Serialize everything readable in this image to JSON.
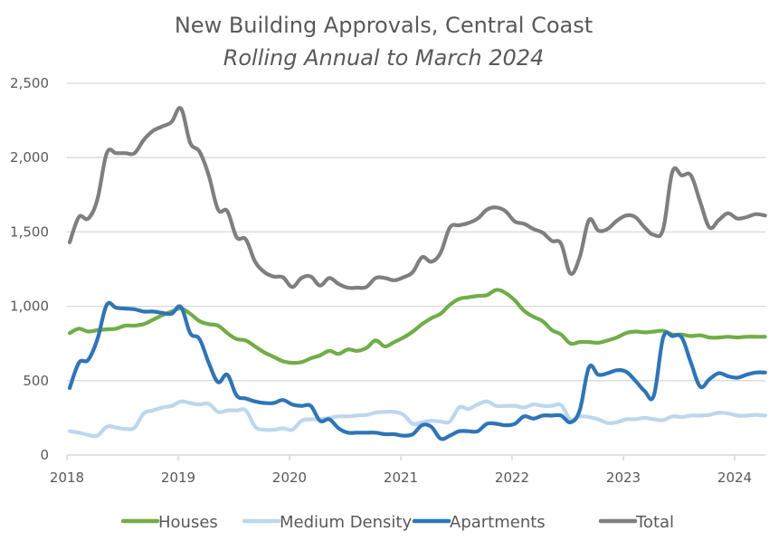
{
  "chart_data": {
    "type": "line",
    "title": "New Building Approvals, Central Coast",
    "subtitle": "Rolling Annual to March 2024",
    "xlabel": "",
    "ylabel": "",
    "ylim": [
      0,
      2500
    ],
    "yticks": [
      0,
      500,
      1000,
      1500,
      2000,
      2500
    ],
    "ytick_labels": [
      "0",
      "500",
      "1,000",
      "1,500",
      "2,000",
      "2,500"
    ],
    "xlim": [
      2018.0,
      2024.25
    ],
    "xticks": [
      2018,
      2019,
      2020,
      2021,
      2022,
      2023,
      2024
    ],
    "xtick_labels": [
      "2018",
      "2019",
      "2020",
      "2021",
      "2022",
      "2023",
      "2024"
    ],
    "grid": true,
    "legend_position": "bottom",
    "x_start": 2018.0,
    "x_step_years": 0.08333,
    "series": [
      {
        "name": "Houses",
        "color": "#70ad47",
        "values": [
          820,
          850,
          830,
          840,
          845,
          850,
          870,
          870,
          880,
          910,
          940,
          965,
          985,
          950,
          900,
          880,
          870,
          820,
          780,
          770,
          730,
          690,
          660,
          630,
          620,
          625,
          650,
          670,
          700,
          680,
          710,
          700,
          720,
          770,
          730,
          760,
          790,
          830,
          880,
          920,
          950,
          1010,
          1050,
          1060,
          1070,
          1075,
          1110,
          1090,
          1040,
          970,
          930,
          900,
          840,
          810,
          750,
          760,
          760,
          755,
          770,
          790,
          820,
          830,
          825,
          830,
          835,
          810,
          810,
          800,
          805,
          790,
          790,
          795,
          790,
          795,
          795,
          795
        ]
      },
      {
        "name": "Medium Density",
        "color": "#bdd7ee",
        "values": [
          160,
          150,
          135,
          130,
          190,
          185,
          175,
          185,
          280,
          300,
          320,
          330,
          360,
          350,
          340,
          345,
          290,
          300,
          300,
          300,
          190,
          170,
          170,
          180,
          170,
          230,
          240,
          240,
          250,
          260,
          260,
          265,
          270,
          285,
          290,
          290,
          270,
          210,
          220,
          230,
          225,
          225,
          320,
          310,
          340,
          360,
          330,
          330,
          330,
          320,
          340,
          330,
          330,
          335,
          240,
          260,
          255,
          240,
          215,
          220,
          240,
          240,
          250,
          240,
          235,
          260,
          255,
          265,
          265,
          270,
          285,
          280,
          265,
          265,
          270,
          265
        ]
      },
      {
        "name": "Apartments",
        "color": "#2e75b6",
        "values": [
          450,
          620,
          640,
          780,
          1010,
          990,
          985,
          980,
          965,
          965,
          955,
          950,
          995,
          820,
          780,
          620,
          490,
          540,
          400,
          380,
          360,
          350,
          350,
          370,
          340,
          330,
          330,
          230,
          240,
          180,
          150,
          150,
          150,
          150,
          140,
          140,
          130,
          140,
          200,
          190,
          110,
          130,
          160,
          160,
          160,
          210,
          210,
          200,
          210,
          260,
          245,
          265,
          265,
          265,
          220,
          300,
          590,
          540,
          550,
          570,
          560,
          500,
          430,
          400,
          790,
          800,
          790,
          620,
          460,
          510,
          550,
          530,
          520,
          540,
          555,
          555
        ]
      },
      {
        "name": "Total",
        "color": "#7f7f7f",
        "values": [
          1430,
          1600,
          1590,
          1720,
          2030,
          2030,
          2030,
          2030,
          2120,
          2180,
          2210,
          2240,
          2330,
          2100,
          2040,
          1880,
          1650,
          1640,
          1465,
          1450,
          1300,
          1230,
          1200,
          1195,
          1130,
          1190,
          1200,
          1140,
          1190,
          1150,
          1125,
          1125,
          1130,
          1190,
          1190,
          1175,
          1195,
          1230,
          1330,
          1300,
          1360,
          1530,
          1545,
          1560,
          1590,
          1650,
          1665,
          1640,
          1570,
          1555,
          1520,
          1495,
          1440,
          1420,
          1220,
          1330,
          1580,
          1510,
          1520,
          1575,
          1610,
          1600,
          1530,
          1480,
          1520,
          1905,
          1880,
          1880,
          1700,
          1530,
          1580,
          1625,
          1590,
          1600,
          1620,
          1610
        ]
      }
    ]
  }
}
